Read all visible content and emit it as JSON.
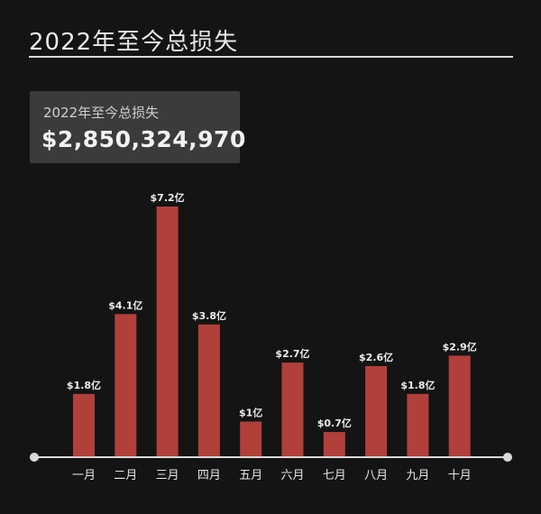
{
  "header": {
    "title": "2022年至今总损失"
  },
  "stat_card": {
    "label": "2022年至今总损失",
    "value": "$2,850,324,970"
  },
  "colors": {
    "background": "#141414",
    "bar": "#b1403a",
    "card": "#3b3b3b",
    "axis": "#d9d9d9"
  },
  "chart_data": {
    "type": "bar",
    "title": "2022年至今总损失",
    "xlabel": "",
    "ylabel": "",
    "grid": false,
    "categories": [
      "一月",
      "二月",
      "三月",
      "四月",
      "五月",
      "六月",
      "七月",
      "八月",
      "九月",
      "十月"
    ],
    "values": [
      1.8,
      4.1,
      7.2,
      3.8,
      1.0,
      2.7,
      0.7,
      2.6,
      1.8,
      2.9
    ],
    "value_labels": [
      "$1.8亿",
      "$4.1亿",
      "$7.2亿",
      "$3.8亿",
      "$1亿",
      "$2.7亿",
      "$0.7亿",
      "$2.6亿",
      "$1.8亿",
      "$2.9亿"
    ],
    "ylim": [
      0,
      7.2
    ]
  }
}
